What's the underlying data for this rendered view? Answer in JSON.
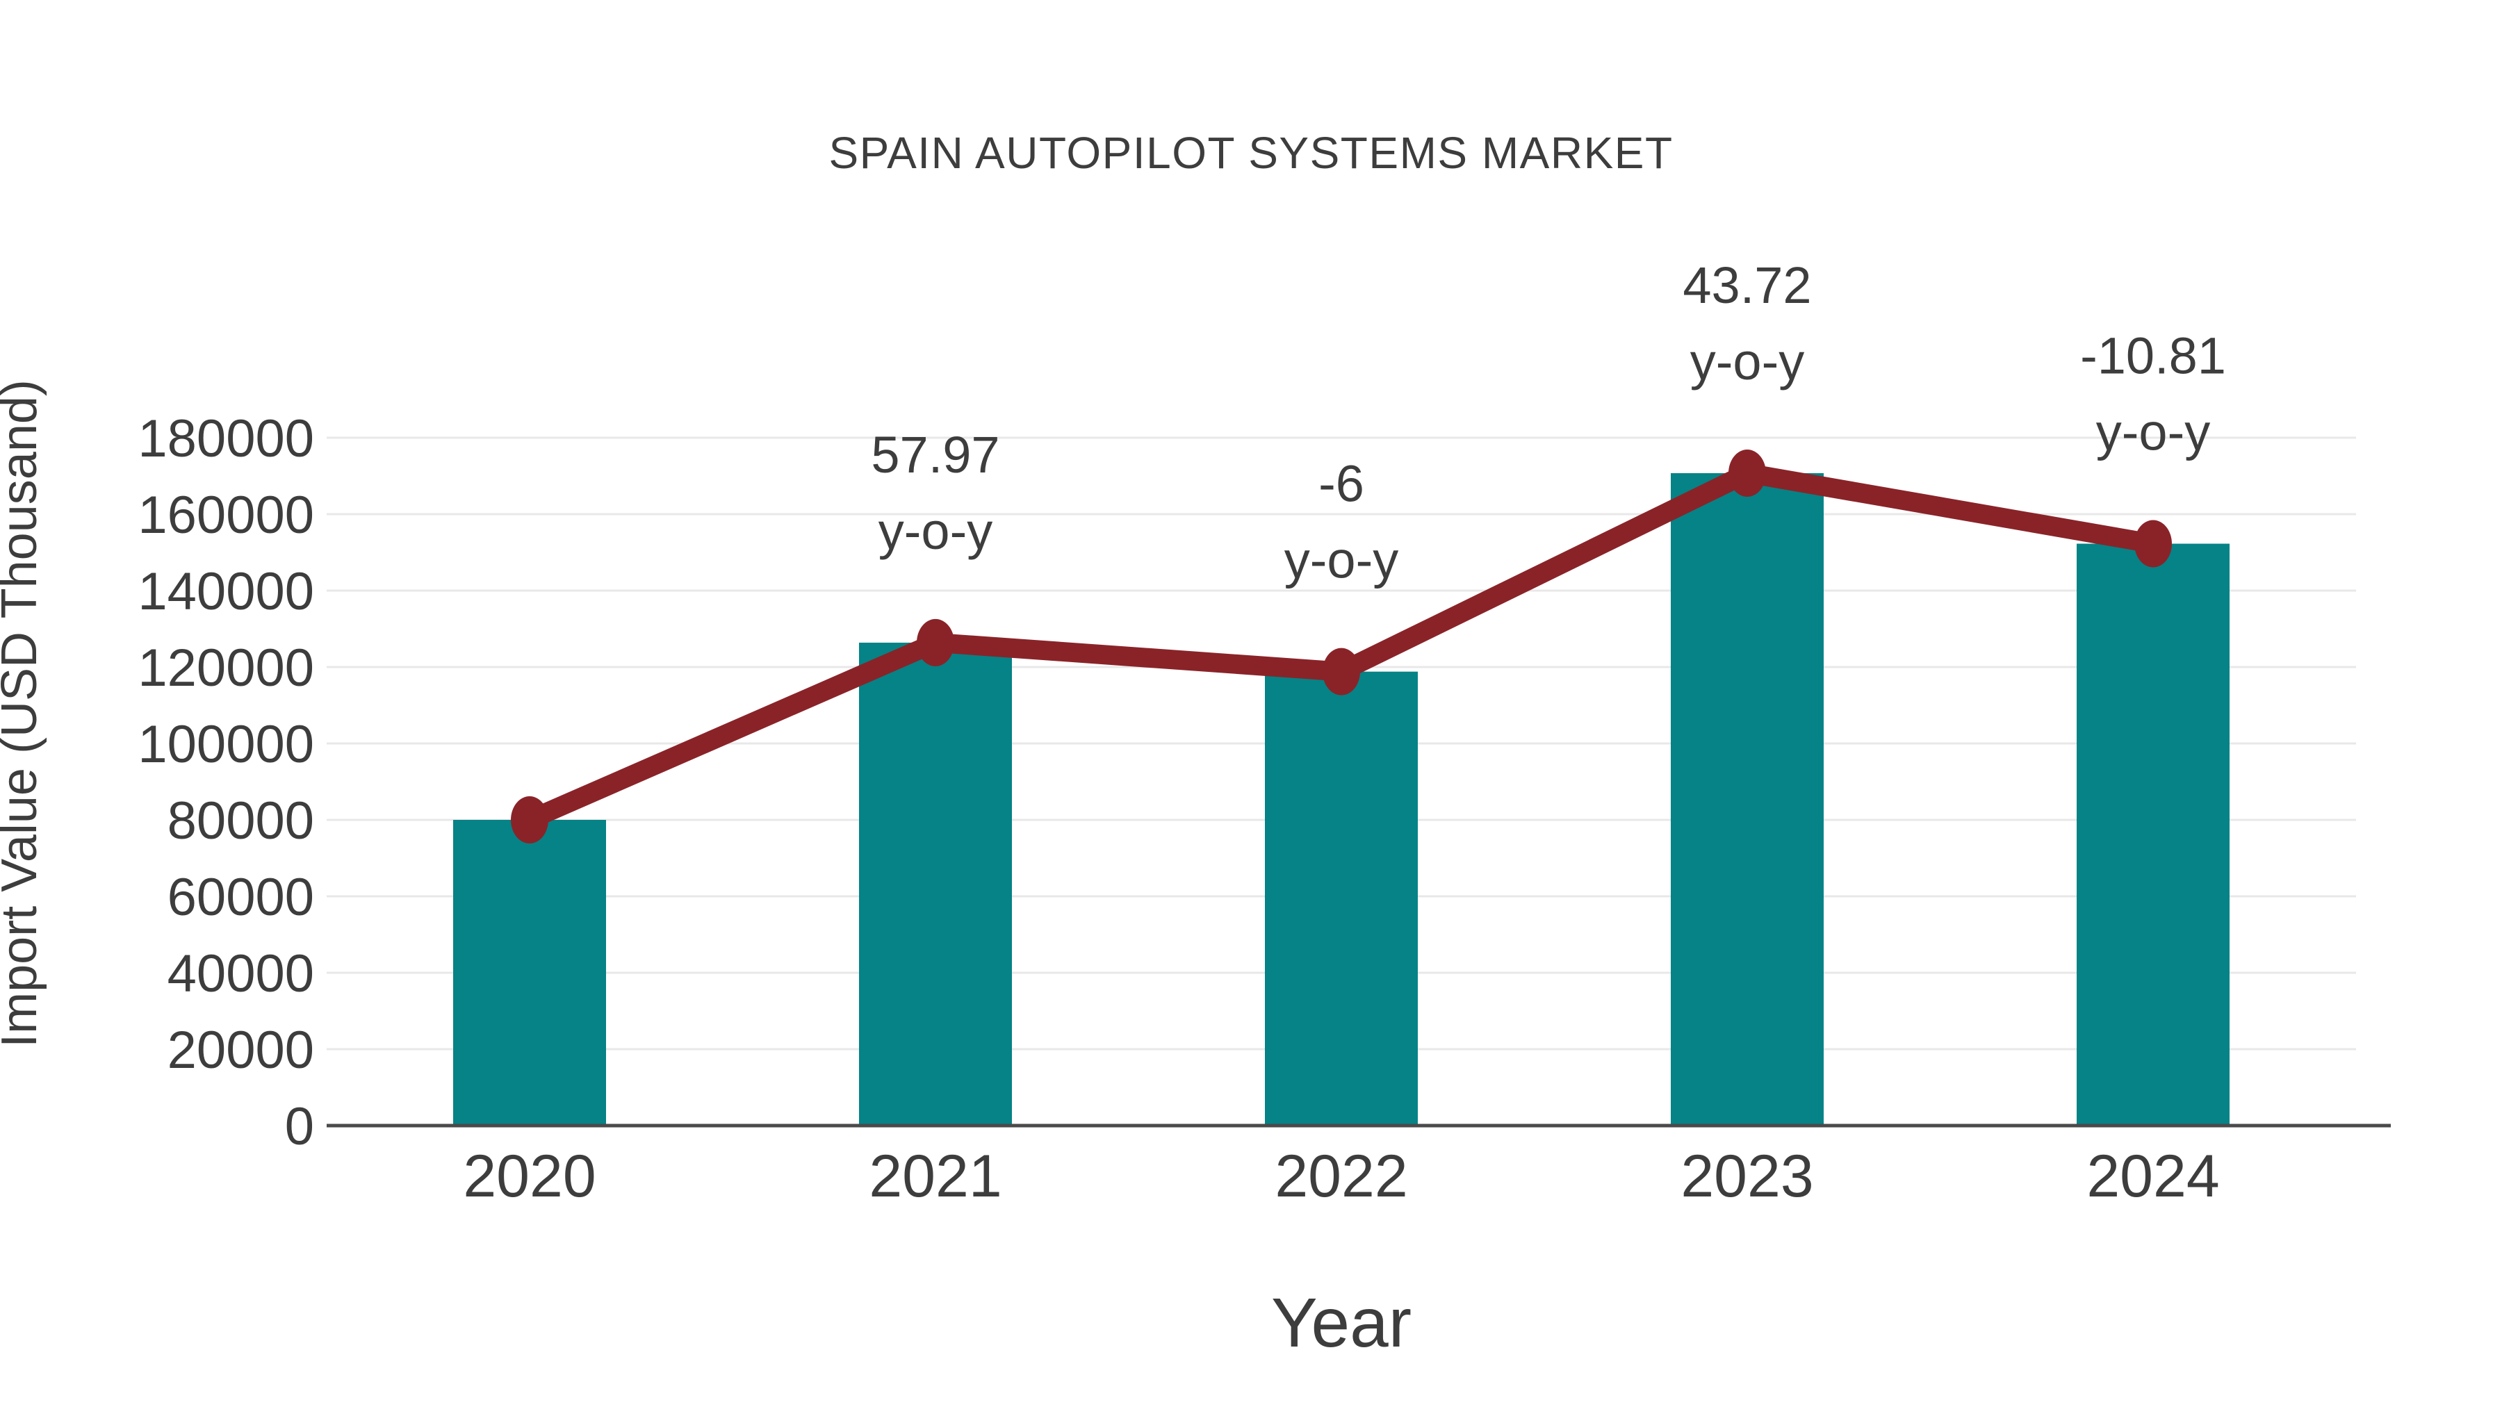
{
  "page": {
    "background": "#ffffff"
  },
  "chart_data": {
    "type": "bar+line",
    "title": "SPAIN AUTOPILOT SYSTEMS MARKET",
    "xlabel": "Year",
    "ylabel": "Import Value (USD Thousand)",
    "categories": [
      "2020",
      "2021",
      "2022",
      "2023",
      "2024"
    ],
    "series": [
      {
        "name": "Import Value bars",
        "type": "bar",
        "color": "#058386",
        "values": [
          80000,
          126376,
          118793,
          170727,
          152273
        ]
      },
      {
        "name": "Import Value trend line",
        "type": "line",
        "color": "#8a2328",
        "values": [
          80000,
          126376,
          118793,
          170727,
          152273
        ]
      }
    ],
    "annotations": [
      {
        "category": "2021",
        "line1": "57.97",
        "line2": "y-o-y"
      },
      {
        "category": "2022",
        "line1": "-6",
        "line2": "y-o-y"
      },
      {
        "category": "2023",
        "line1": "43.72",
        "line2": "y-o-y"
      },
      {
        "category": "2024",
        "line1": "-10.81",
        "line2": "y-o-y"
      }
    ],
    "yticks": [
      0,
      20000,
      40000,
      60000,
      80000,
      100000,
      120000,
      140000,
      160000,
      180000
    ],
    "ylim": [
      0,
      180000
    ],
    "grid": true,
    "legend": false,
    "colors": {
      "bar": "#058386",
      "line": "#8a2328",
      "grid": "#e8e8e8",
      "axis": "#4a4a4a",
      "text": "#3d3d3d",
      "background": "#ffffff"
    }
  }
}
